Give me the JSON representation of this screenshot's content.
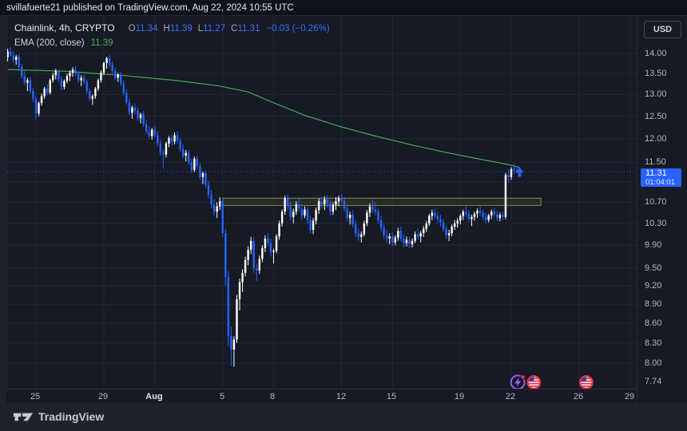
{
  "top_bar": {
    "text": "svillafuerte21 published on TradingView.com, Aug 22, 2024 10:55 UTC"
  },
  "legend": {
    "title": "Chainlink, 4h, CRYPTO",
    "o": {
      "label": "O",
      "value": "11.34"
    },
    "h": {
      "label": "H",
      "value": "11.39"
    },
    "l": {
      "label": "L",
      "value": "11.27"
    },
    "c": {
      "label": "C",
      "value": "11.31"
    },
    "change": "−0.03 (−0.26%)",
    "ema_label": "EMA (200, close)",
    "ema_value": "11.39"
  },
  "price_axis": {
    "currency": "USD",
    "ticks": [
      "14.00",
      "13.50",
      "13.00",
      "12.50",
      "12.00",
      "11.50",
      "10.70",
      "10.30",
      "9.90",
      "9.50",
      "9.20",
      "8.90",
      "8.60",
      "8.30",
      "8.00",
      "7.74"
    ],
    "grid_only": [
      11.1
    ],
    "last_price": {
      "value": "11.31",
      "countdown": "01:04:01"
    }
  },
  "time_axis": {
    "ticks": [
      {
        "label": "25",
        "day": 2
      },
      {
        "label": "29",
        "day": 6
      },
      {
        "label": "Aug",
        "day": 9,
        "month": true
      },
      {
        "label": "5",
        "day": 13
      },
      {
        "label": "8",
        "day": 16
      },
      {
        "label": "12",
        "day": 20
      },
      {
        "label": "15",
        "day": 23
      },
      {
        "label": "19",
        "day": 27
      },
      {
        "label": "22",
        "day": 30
      },
      {
        "label": "26",
        "day": 34
      },
      {
        "label": "29",
        "day": 37
      }
    ]
  },
  "footer": {
    "brand": "TradingView"
  },
  "colors": {
    "up": "#ffffff",
    "down": "#2962ff",
    "ema": "#4caf50",
    "accent": "#2962ff",
    "grid": "#212734",
    "zone_fill": "rgba(181,173,60,0.10)",
    "zone_border": "rgba(199,192,82,0.65)",
    "event_purple": "#9c5bff",
    "event_red": "#ef323d",
    "alert_dot": "#f23645"
  },
  "chart_data": {
    "type": "candlestick",
    "symbol": "Chainlink",
    "exchange": "CRYPTO",
    "interval": "4h",
    "scale": "log",
    "start": "Jul 23 08:00 UTC",
    "candle_hours": 4,
    "ylim": [
      7.74,
      14.35
    ],
    "price_line": 11.31,
    "zone": {
      "top": 10.78,
      "bottom": 10.64,
      "from_k": 76,
      "to_k": 188.5
    },
    "ema_points": [
      [
        0,
        13.6
      ],
      [
        20,
        13.56
      ],
      [
        40,
        13.46
      ],
      [
        60,
        13.33
      ],
      [
        75,
        13.2
      ],
      [
        85,
        13.06
      ],
      [
        95,
        12.78
      ],
      [
        105,
        12.52
      ],
      [
        118,
        12.26
      ],
      [
        130,
        12.06
      ],
      [
        142,
        11.88
      ],
      [
        154,
        11.72
      ],
      [
        164,
        11.6
      ],
      [
        172,
        11.51
      ],
      [
        178,
        11.44
      ],
      [
        181,
        11.39
      ]
    ],
    "events": [
      {
        "k": 180.3,
        "type": "crypto-event"
      },
      {
        "k": 186.0,
        "type": "us-economic-event"
      },
      {
        "k": 204.5,
        "type": "us-economic-event"
      }
    ],
    "candles": [
      [
        13.9,
        14.12,
        13.8,
        14.05
      ],
      [
        14.05,
        14.17,
        13.92,
        13.95
      ],
      [
        13.95,
        14.05,
        13.78,
        13.84
      ],
      [
        13.84,
        13.96,
        13.72,
        13.92
      ],
      [
        13.92,
        13.98,
        13.6,
        13.66
      ],
      [
        13.66,
        13.74,
        13.38,
        13.44
      ],
      [
        13.44,
        13.56,
        13.22,
        13.28
      ],
      [
        13.28,
        13.4,
        13.08,
        13.34
      ],
      [
        13.34,
        13.42,
        13.02,
        13.08
      ],
      [
        13.08,
        13.16,
        12.82,
        12.9
      ],
      [
        12.9,
        12.96,
        12.42,
        12.56
      ],
      [
        12.56,
        12.84,
        12.5,
        12.8
      ],
      [
        12.8,
        13.02,
        12.74,
        12.96
      ],
      [
        12.96,
        13.18,
        12.9,
        13.14
      ],
      [
        13.14,
        13.24,
        12.98,
        13.04
      ],
      [
        13.04,
        13.38,
        13.0,
        13.34
      ],
      [
        13.34,
        13.52,
        13.28,
        13.46
      ],
      [
        13.46,
        13.62,
        13.36,
        13.56
      ],
      [
        13.56,
        13.6,
        13.3,
        13.36
      ],
      [
        13.36,
        13.44,
        13.1,
        13.18
      ],
      [
        13.18,
        13.36,
        13.12,
        13.32
      ],
      [
        13.32,
        13.5,
        13.26,
        13.44
      ],
      [
        13.44,
        13.58,
        13.32,
        13.52
      ],
      [
        13.52,
        13.66,
        13.42,
        13.6
      ],
      [
        13.6,
        13.68,
        13.44,
        13.5
      ],
      [
        13.5,
        13.56,
        13.28,
        13.34
      ],
      [
        13.34,
        13.46,
        13.2,
        13.4
      ],
      [
        13.4,
        13.48,
        13.24,
        13.3
      ],
      [
        13.3,
        13.36,
        13.02,
        13.08
      ],
      [
        13.08,
        13.14,
        12.84,
        12.9
      ],
      [
        12.9,
        13.0,
        12.76,
        12.96
      ],
      [
        12.96,
        13.18,
        12.9,
        13.14
      ],
      [
        13.14,
        13.38,
        13.08,
        13.34
      ],
      [
        13.34,
        13.58,
        13.28,
        13.52
      ],
      [
        13.52,
        13.8,
        13.46,
        13.76
      ],
      [
        13.76,
        13.92,
        13.62,
        13.88
      ],
      [
        13.88,
        13.96,
        13.66,
        13.72
      ],
      [
        13.72,
        13.8,
        13.5,
        13.56
      ],
      [
        13.56,
        13.64,
        13.34,
        13.4
      ],
      [
        13.4,
        13.52,
        13.3,
        13.48
      ],
      [
        13.48,
        13.54,
        13.2,
        13.26
      ],
      [
        13.26,
        13.34,
        12.98,
        13.04
      ],
      [
        13.04,
        13.12,
        12.76,
        12.82
      ],
      [
        12.82,
        12.9,
        12.52,
        12.58
      ],
      [
        12.58,
        12.74,
        12.44,
        12.7
      ],
      [
        12.7,
        12.78,
        12.54,
        12.62
      ],
      [
        12.62,
        12.7,
        12.4,
        12.46
      ],
      [
        12.46,
        12.58,
        12.34,
        12.54
      ],
      [
        12.54,
        12.62,
        12.26,
        12.32
      ],
      [
        12.32,
        12.42,
        12.1,
        12.16
      ],
      [
        12.16,
        12.28,
        12.0,
        12.06
      ],
      [
        12.06,
        12.24,
        11.98,
        12.2
      ],
      [
        12.2,
        12.28,
        12.02,
        12.08
      ],
      [
        12.08,
        12.16,
        11.84,
        11.9
      ],
      [
        11.9,
        11.98,
        11.64,
        11.7
      ],
      [
        11.7,
        11.78,
        11.38,
        11.66
      ],
      [
        11.66,
        11.94,
        11.6,
        11.9
      ],
      [
        11.9,
        12.06,
        11.82,
        12.02
      ],
      [
        12.02,
        12.1,
        11.86,
        11.94
      ],
      [
        11.94,
        12.14,
        11.88,
        12.08
      ],
      [
        12.08,
        12.16,
        11.9,
        11.96
      ],
      [
        11.96,
        12.02,
        11.72,
        11.78
      ],
      [
        11.78,
        11.88,
        11.58,
        11.64
      ],
      [
        11.64,
        11.76,
        11.52,
        11.7
      ],
      [
        11.7,
        11.76,
        11.44,
        11.5
      ],
      [
        11.5,
        11.58,
        11.28,
        11.34
      ],
      [
        11.34,
        11.62,
        11.3,
        11.58
      ],
      [
        11.58,
        11.64,
        11.36,
        11.42
      ],
      [
        11.42,
        11.48,
        11.14,
        11.2
      ],
      [
        11.2,
        11.32,
        11.06,
        11.28
      ],
      [
        11.28,
        11.34,
        10.98,
        11.04
      ],
      [
        11.04,
        11.12,
        10.78,
        10.84
      ],
      [
        10.84,
        10.94,
        10.58,
        10.66
      ],
      [
        10.66,
        10.76,
        10.45,
        10.52
      ],
      [
        10.52,
        10.7,
        10.4,
        10.62
      ],
      [
        10.62,
        10.8,
        10.55,
        10.72
      ],
      [
        10.72,
        10.78,
        10.05,
        10.12
      ],
      [
        10.12,
        10.2,
        9.2,
        9.35
      ],
      [
        9.35,
        9.45,
        8.25,
        8.4
      ],
      [
        8.4,
        8.55,
        7.96,
        8.2
      ],
      [
        8.2,
        8.4,
        7.95,
        8.35
      ],
      [
        8.35,
        9.05,
        8.3,
        8.98
      ],
      [
        8.98,
        9.32,
        8.8,
        9.26
      ],
      [
        9.26,
        9.48,
        9.1,
        9.42
      ],
      [
        9.42,
        9.7,
        9.36,
        9.64
      ],
      [
        9.64,
        9.88,
        9.55,
        9.82
      ],
      [
        9.82,
        10.05,
        9.74,
        9.98
      ],
      [
        9.98,
        10.04,
        9.42,
        9.5
      ],
      [
        9.5,
        9.58,
        9.28,
        9.46
      ],
      [
        9.46,
        9.72,
        9.4,
        9.66
      ],
      [
        9.66,
        9.9,
        9.6,
        9.85
      ],
      [
        9.85,
        10.08,
        9.78,
        10.02
      ],
      [
        10.02,
        10.12,
        9.88,
        9.94
      ],
      [
        9.94,
        10.02,
        9.7,
        9.78
      ],
      [
        9.78,
        9.84,
        9.58,
        9.8
      ],
      [
        9.8,
        10.1,
        9.76,
        10.06
      ],
      [
        10.06,
        10.35,
        10.0,
        10.3
      ],
      [
        10.3,
        10.56,
        10.24,
        10.52
      ],
      [
        10.52,
        10.83,
        10.46,
        10.78
      ],
      [
        10.78,
        10.86,
        10.55,
        10.62
      ],
      [
        10.62,
        10.7,
        10.35,
        10.42
      ],
      [
        10.42,
        10.58,
        10.3,
        10.52
      ],
      [
        10.52,
        10.72,
        10.46,
        10.66
      ],
      [
        10.66,
        10.78,
        10.52,
        10.58
      ],
      [
        10.58,
        10.66,
        10.38,
        10.45
      ],
      [
        10.45,
        10.62,
        10.4,
        10.56
      ],
      [
        10.56,
        10.64,
        10.3,
        10.36
      ],
      [
        10.36,
        10.44,
        10.12,
        10.18
      ],
      [
        10.18,
        10.4,
        10.1,
        10.35
      ],
      [
        10.35,
        10.6,
        10.28,
        10.55
      ],
      [
        10.55,
        10.78,
        10.48,
        10.72
      ],
      [
        10.72,
        10.8,
        10.58,
        10.66
      ],
      [
        10.66,
        10.82,
        10.55,
        10.76
      ],
      [
        10.76,
        10.84,
        10.6,
        10.68
      ],
      [
        10.68,
        10.74,
        10.45,
        10.52
      ],
      [
        10.52,
        10.7,
        10.46,
        10.65
      ],
      [
        10.65,
        10.8,
        10.55,
        10.72
      ],
      [
        10.72,
        10.83,
        10.62,
        10.78
      ],
      [
        10.78,
        10.86,
        10.68,
        10.74
      ],
      [
        10.74,
        10.8,
        10.52,
        10.58
      ],
      [
        10.58,
        10.64,
        10.34,
        10.4
      ],
      [
        10.4,
        10.52,
        10.28,
        10.46
      ],
      [
        10.46,
        10.55,
        10.22,
        10.28
      ],
      [
        10.28,
        10.36,
        10.05,
        10.12
      ],
      [
        10.12,
        10.2,
        9.98,
        10.05
      ],
      [
        10.05,
        10.15,
        9.95,
        10.1
      ],
      [
        10.1,
        10.35,
        10.06,
        10.3
      ],
      [
        10.3,
        10.55,
        10.25,
        10.5
      ],
      [
        10.5,
        10.68,
        10.42,
        10.62
      ],
      [
        10.62,
        10.75,
        10.5,
        10.56
      ],
      [
        10.56,
        10.7,
        10.45,
        10.52
      ],
      [
        10.52,
        10.58,
        10.3,
        10.36
      ],
      [
        10.36,
        10.44,
        10.15,
        10.22
      ],
      [
        10.22,
        10.3,
        10.02,
        10.08
      ],
      [
        10.08,
        10.18,
        9.95,
        10.02
      ],
      [
        10.02,
        10.12,
        9.92,
        10.06
      ],
      [
        10.06,
        10.14,
        9.88,
        9.95
      ],
      [
        9.95,
        10.08,
        9.9,
        10.04
      ],
      [
        10.04,
        10.22,
        9.98,
        10.16
      ],
      [
        10.16,
        10.24,
        9.96,
        10.02
      ],
      [
        10.02,
        10.1,
        9.86,
        9.94
      ],
      [
        9.94,
        10.06,
        9.88,
        10.0
      ],
      [
        10.0,
        10.05,
        9.85,
        9.92
      ],
      [
        9.92,
        10.02,
        9.86,
        9.98
      ],
      [
        9.98,
        10.15,
        9.94,
        10.1
      ],
      [
        10.1,
        10.2,
        10.0,
        10.06
      ],
      [
        10.06,
        10.16,
        9.95,
        10.12
      ],
      [
        10.12,
        10.25,
        10.05,
        10.2
      ],
      [
        10.2,
        10.35,
        10.14,
        10.3
      ],
      [
        10.3,
        10.48,
        10.25,
        10.44
      ],
      [
        10.44,
        10.56,
        10.36,
        10.5
      ],
      [
        10.5,
        10.58,
        10.38,
        10.44
      ],
      [
        10.44,
        10.52,
        10.3,
        10.38
      ],
      [
        10.38,
        10.46,
        10.24,
        10.32
      ],
      [
        10.32,
        10.38,
        10.14,
        10.2
      ],
      [
        10.2,
        10.26,
        10.02,
        10.08
      ],
      [
        10.08,
        10.18,
        9.98,
        10.12
      ],
      [
        10.12,
        10.28,
        10.06,
        10.24
      ],
      [
        10.24,
        10.36,
        10.18,
        10.3
      ],
      [
        10.3,
        10.4,
        10.22,
        10.35
      ],
      [
        10.35,
        10.48,
        10.28,
        10.44
      ],
      [
        10.44,
        10.56,
        10.36,
        10.52
      ],
      [
        10.52,
        10.62,
        10.42,
        10.48
      ],
      [
        10.48,
        10.55,
        10.32,
        10.38
      ],
      [
        10.38,
        10.46,
        10.25,
        10.42
      ],
      [
        10.42,
        10.52,
        10.35,
        10.48
      ],
      [
        10.48,
        10.58,
        10.4,
        10.54
      ],
      [
        10.54,
        10.62,
        10.44,
        10.5
      ],
      [
        10.5,
        10.56,
        10.35,
        10.42
      ],
      [
        10.42,
        10.5,
        10.3,
        10.36
      ],
      [
        10.36,
        10.48,
        10.32,
        10.45
      ],
      [
        10.45,
        10.56,
        10.38,
        10.52
      ],
      [
        10.52,
        10.6,
        10.42,
        10.47
      ],
      [
        10.47,
        10.54,
        10.35,
        10.4
      ],
      [
        10.4,
        10.5,
        10.34,
        10.46
      ],
      [
        10.46,
        10.52,
        10.36,
        10.42
      ],
      [
        10.42,
        11.28,
        10.38,
        11.24
      ],
      [
        11.24,
        11.36,
        11.08,
        11.2
      ],
      [
        11.2,
        11.4,
        11.14,
        11.36
      ],
      [
        11.36,
        11.47,
        11.26,
        11.34
      ],
      [
        11.34,
        11.39,
        11.27,
        11.31
      ]
    ]
  }
}
